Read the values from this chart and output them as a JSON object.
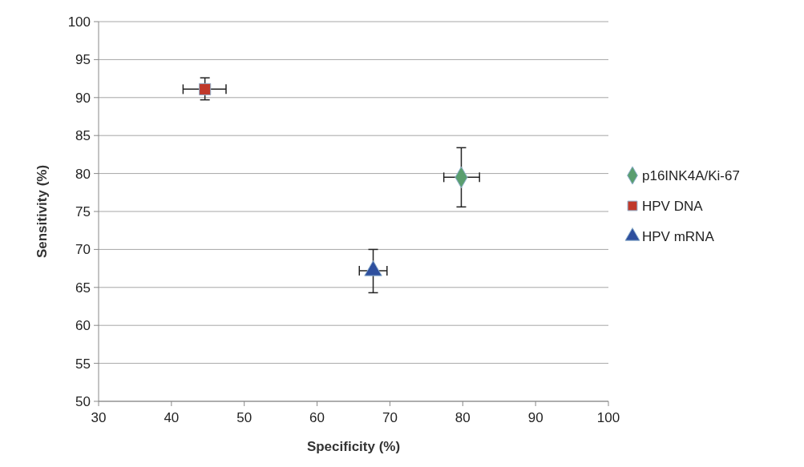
{
  "chart_data": {
    "type": "scatter",
    "xlabel": "Specificity (%)",
    "ylabel": "Sensitivity (%)",
    "xlim": [
      30,
      100
    ],
    "xticks": [
      30,
      40,
      50,
      60,
      70,
      80,
      90,
      100
    ],
    "ylim": [
      50,
      100
    ],
    "yticks": [
      50,
      55,
      60,
      65,
      70,
      75,
      80,
      85,
      90,
      95,
      100
    ],
    "grid": "y",
    "legend": "right",
    "series": [
      {
        "name": "p16INK4A/Ki-67",
        "color": "#5a9e6f",
        "marker": "diamond",
        "x": [
          79.8
        ],
        "values": [
          79.5
        ],
        "errors": [
          [
            75.6,
            83.4
          ]
        ],
        "xerrors": [
          [
            77.4,
            82.3
          ]
        ]
      },
      {
        "name": "HPV DNA",
        "color": "#c0392b",
        "marker": "square",
        "x": [
          44.6
        ],
        "values": [
          91.1
        ],
        "errors": [
          [
            89.7,
            92.6
          ]
        ],
        "xerrors": [
          [
            41.6,
            47.5
          ]
        ]
      },
      {
        "name": "HPV mRNA",
        "color": "#2e4f9e",
        "marker": "triangle",
        "x": [
          67.7
        ],
        "values": [
          67.2
        ],
        "errors": [
          [
            64.3,
            70.0
          ]
        ],
        "xerrors": [
          [
            65.8,
            69.6
          ]
        ]
      }
    ]
  }
}
